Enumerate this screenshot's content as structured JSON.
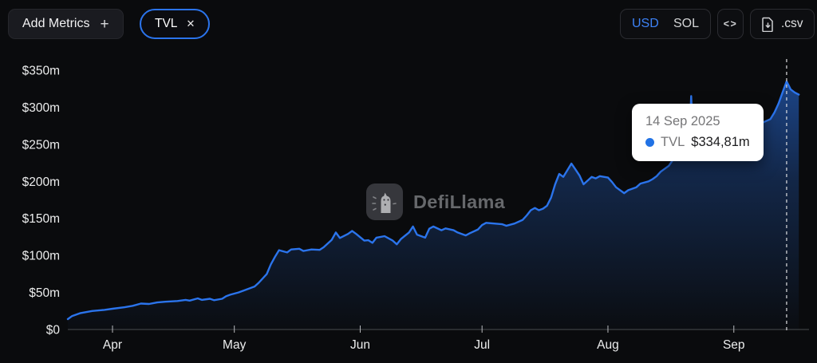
{
  "header": {
    "add_metrics_label": "Add Metrics",
    "add_metrics_plus": "+",
    "metric_chip": {
      "label": "TVL",
      "close": "✕"
    },
    "currency_toggle": {
      "options": [
        "USD",
        "SOL"
      ],
      "selected": "USD"
    },
    "embed_label": "<>",
    "csv_label": ".csv"
  },
  "watermark": {
    "text": "DefiLlama"
  },
  "tooltip": {
    "date": "14 Sep 2025",
    "series_label": "TVL",
    "value": "$334,81m",
    "dot_color": "#2172e5"
  },
  "colors": {
    "background": "#0a0b0d",
    "line": "#2b74ec",
    "accent_blue": "#3d82f6",
    "axis": "#4b4c50",
    "tick": "#b9babd",
    "axis_text": "#eceded",
    "dashed_crosshair": "#dddddf"
  },
  "chart_data": {
    "type": "area",
    "title": "TVL",
    "xlabel": "",
    "ylabel": "",
    "unit": "USD millions",
    "grid": false,
    "legend": false,
    "ylim": [
      0,
      350
    ],
    "xlim": [
      "2025-03-21",
      "2025-09-17"
    ],
    "y_ticks": [
      {
        "value": 0,
        "label": "$0"
      },
      {
        "value": 50,
        "label": "$50m"
      },
      {
        "value": 100,
        "label": "$100m"
      },
      {
        "value": 150,
        "label": "$150m"
      },
      {
        "value": 200,
        "label": "$200m"
      },
      {
        "value": 250,
        "label": "$250m"
      },
      {
        "value": 300,
        "label": "$300m"
      },
      {
        "value": 350,
        "label": "$350m"
      }
    ],
    "x_ticks": [
      {
        "date": "2025-04-01",
        "label": "Apr"
      },
      {
        "date": "2025-05-01",
        "label": "May"
      },
      {
        "date": "2025-06-01",
        "label": "Jun"
      },
      {
        "date": "2025-07-01",
        "label": "Jul"
      },
      {
        "date": "2025-08-01",
        "label": "Aug"
      },
      {
        "date": "2025-09-01",
        "label": "Sep"
      }
    ],
    "highlight": {
      "date": "2025-09-14",
      "value": 334.81
    },
    "series": [
      {
        "name": "TVL",
        "color": "#2b74ec",
        "points": [
          [
            "2025-03-21",
            14
          ],
          [
            "2025-03-22",
            18
          ],
          [
            "2025-03-24",
            22
          ],
          [
            "2025-03-27",
            25
          ],
          [
            "2025-03-30",
            26.5
          ],
          [
            "2025-04-01",
            28
          ],
          [
            "2025-04-04",
            30
          ],
          [
            "2025-04-06",
            32
          ],
          [
            "2025-04-08",
            35
          ],
          [
            "2025-04-10",
            34.5
          ],
          [
            "2025-04-12",
            36.5
          ],
          [
            "2025-04-14",
            37.5
          ],
          [
            "2025-04-17",
            38.5
          ],
          [
            "2025-04-19",
            40
          ],
          [
            "2025-04-20",
            39
          ],
          [
            "2025-04-22",
            42
          ],
          [
            "2025-04-23",
            40
          ],
          [
            "2025-04-25",
            41.5
          ],
          [
            "2025-04-26",
            39.5
          ],
          [
            "2025-04-28",
            41.5
          ],
          [
            "2025-04-29",
            45
          ],
          [
            "2025-04-30",
            47
          ],
          [
            "2025-05-02",
            50
          ],
          [
            "2025-05-04",
            54
          ],
          [
            "2025-05-06",
            58
          ],
          [
            "2025-05-07",
            63
          ],
          [
            "2025-05-09",
            75
          ],
          [
            "2025-05-10",
            88
          ],
          [
            "2025-05-11",
            98
          ],
          [
            "2025-05-12",
            107
          ],
          [
            "2025-05-14",
            104
          ],
          [
            "2025-05-15",
            108
          ],
          [
            "2025-05-17",
            109
          ],
          [
            "2025-05-18",
            106
          ],
          [
            "2025-05-20",
            108
          ],
          [
            "2025-05-22",
            107.5
          ],
          [
            "2025-05-23",
            111
          ],
          [
            "2025-05-25",
            121
          ],
          [
            "2025-05-26",
            131
          ],
          [
            "2025-05-27",
            123.5
          ],
          [
            "2025-05-29",
            129
          ],
          [
            "2025-05-30",
            133
          ],
          [
            "2025-05-31",
            129
          ],
          [
            "2025-06-02",
            120
          ],
          [
            "2025-06-03",
            120.5
          ],
          [
            "2025-06-04",
            117
          ],
          [
            "2025-06-05",
            124
          ],
          [
            "2025-06-07",
            126
          ],
          [
            "2025-06-09",
            120
          ],
          [
            "2025-06-10",
            115
          ],
          [
            "2025-06-11",
            122
          ],
          [
            "2025-06-13",
            131
          ],
          [
            "2025-06-14",
            139
          ],
          [
            "2025-06-15",
            128
          ],
          [
            "2025-06-17",
            124
          ],
          [
            "2025-06-18",
            136
          ],
          [
            "2025-06-19",
            139
          ],
          [
            "2025-06-21",
            134
          ],
          [
            "2025-06-22",
            136.5
          ],
          [
            "2025-06-24",
            134
          ],
          [
            "2025-06-25",
            131
          ],
          [
            "2025-06-27",
            127
          ],
          [
            "2025-06-28",
            130
          ],
          [
            "2025-06-30",
            135
          ],
          [
            "2025-07-01",
            141
          ],
          [
            "2025-07-02",
            144
          ],
          [
            "2025-07-04",
            143
          ],
          [
            "2025-07-06",
            142
          ],
          [
            "2025-07-07",
            140
          ],
          [
            "2025-07-09",
            143
          ],
          [
            "2025-07-11",
            148
          ],
          [
            "2025-07-12",
            154
          ],
          [
            "2025-07-13",
            161
          ],
          [
            "2025-07-14",
            164
          ],
          [
            "2025-07-15",
            161
          ],
          [
            "2025-07-16",
            163
          ],
          [
            "2025-07-17",
            167
          ],
          [
            "2025-07-18",
            178
          ],
          [
            "2025-07-19",
            196
          ],
          [
            "2025-07-20",
            210
          ],
          [
            "2025-07-21",
            206
          ],
          [
            "2025-07-22",
            215
          ],
          [
            "2025-07-23",
            224
          ],
          [
            "2025-07-24",
            216
          ],
          [
            "2025-07-25",
            208
          ],
          [
            "2025-07-26",
            196
          ],
          [
            "2025-07-27",
            201
          ],
          [
            "2025-07-28",
            206
          ],
          [
            "2025-07-29",
            204
          ],
          [
            "2025-07-30",
            207
          ],
          [
            "2025-08-01",
            205
          ],
          [
            "2025-08-02",
            199
          ],
          [
            "2025-08-03",
            192
          ],
          [
            "2025-08-05",
            184
          ],
          [
            "2025-08-06",
            188
          ],
          [
            "2025-08-08",
            192
          ],
          [
            "2025-08-09",
            197
          ],
          [
            "2025-08-11",
            200
          ],
          [
            "2025-08-12",
            203
          ],
          [
            "2025-08-13",
            207
          ],
          [
            "2025-08-14",
            213
          ],
          [
            "2025-08-16",
            221
          ],
          [
            "2025-08-17",
            229
          ],
          [
            "2025-08-19",
            238
          ],
          [
            "2025-08-20",
            247
          ],
          [
            "2025-08-21",
            252
          ],
          [
            "2025-08-21T12:00",
            315
          ],
          [
            "2025-08-22",
            253
          ],
          [
            "2025-08-24",
            256
          ],
          [
            "2025-08-26",
            258
          ],
          [
            "2025-08-28",
            261
          ],
          [
            "2025-08-30",
            263
          ],
          [
            "2025-09-01",
            266
          ],
          [
            "2025-09-03",
            269
          ],
          [
            "2025-09-05",
            272
          ],
          [
            "2025-09-07",
            276
          ],
          [
            "2025-09-08",
            279
          ],
          [
            "2025-09-10",
            284
          ],
          [
            "2025-09-11",
            293
          ],
          [
            "2025-09-12",
            305
          ],
          [
            "2025-09-13",
            320
          ],
          [
            "2025-09-14",
            334.81
          ],
          [
            "2025-09-15",
            324
          ],
          [
            "2025-09-16",
            320
          ],
          [
            "2025-09-17",
            317
          ]
        ]
      }
    ]
  }
}
